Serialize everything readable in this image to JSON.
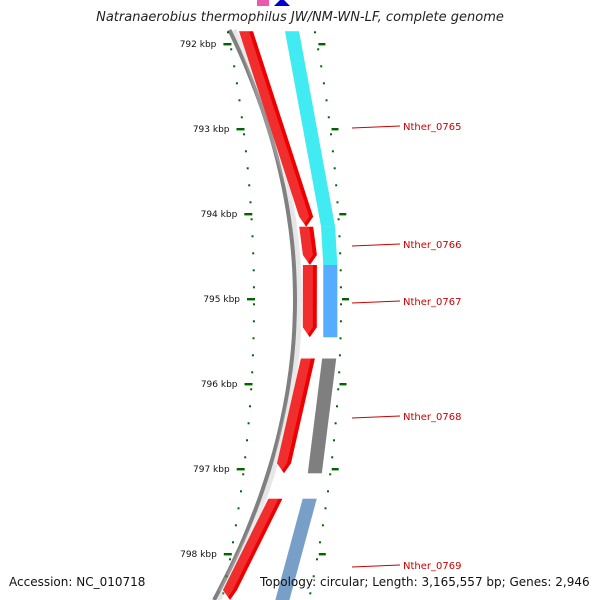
{
  "title": "Natranaerobius thermophilus JW/NM-WN-LF, complete genome",
  "footer": {
    "accession": "Accession: NC_010718",
    "summary": "Topology: circular; Length: 3,165,557 bp; Genes: 2,946"
  },
  "scale": {
    "ticks": [
      {
        "kbp": 792,
        "label": "792 kbp"
      },
      {
        "kbp": 793,
        "label": "793 kbp"
      },
      {
        "kbp": 794,
        "label": "794 kbp"
      },
      {
        "kbp": 795,
        "label": "795 kbp"
      },
      {
        "kbp": 796,
        "label": "796 kbp"
      },
      {
        "kbp": 797,
        "label": "797 kbp"
      },
      {
        "kbp": 798,
        "label": "798 kbp"
      }
    ]
  },
  "genes": [
    {
      "label": "Nther_0765",
      "start_kbp": 791.85,
      "end_kbp": 794.15,
      "cog_color": "#00e5ee"
    },
    {
      "label": "Nther_0766",
      "start_kbp": 794.15,
      "end_kbp": 794.6,
      "cog_color": "#00e5ee"
    },
    {
      "label": "Nther_0767",
      "start_kbp": 794.6,
      "end_kbp": 795.45,
      "cog_color": "#1e90ff"
    },
    {
      "label": "Nther_0768",
      "start_kbp": 795.7,
      "end_kbp": 797.05,
      "cog_color": "#555555"
    },
    {
      "label": "Nther_0769",
      "start_kbp": 797.35,
      "end_kbp": 798.6,
      "cog_color": "#4a7fb5"
    }
  ],
  "colors": {
    "cds": "#ee0000",
    "backbone": "#808080",
    "tick": "#006400",
    "label": "#cc0000",
    "top_marker_left": "#e0007f",
    "top_marker_right": "#0000cc"
  }
}
